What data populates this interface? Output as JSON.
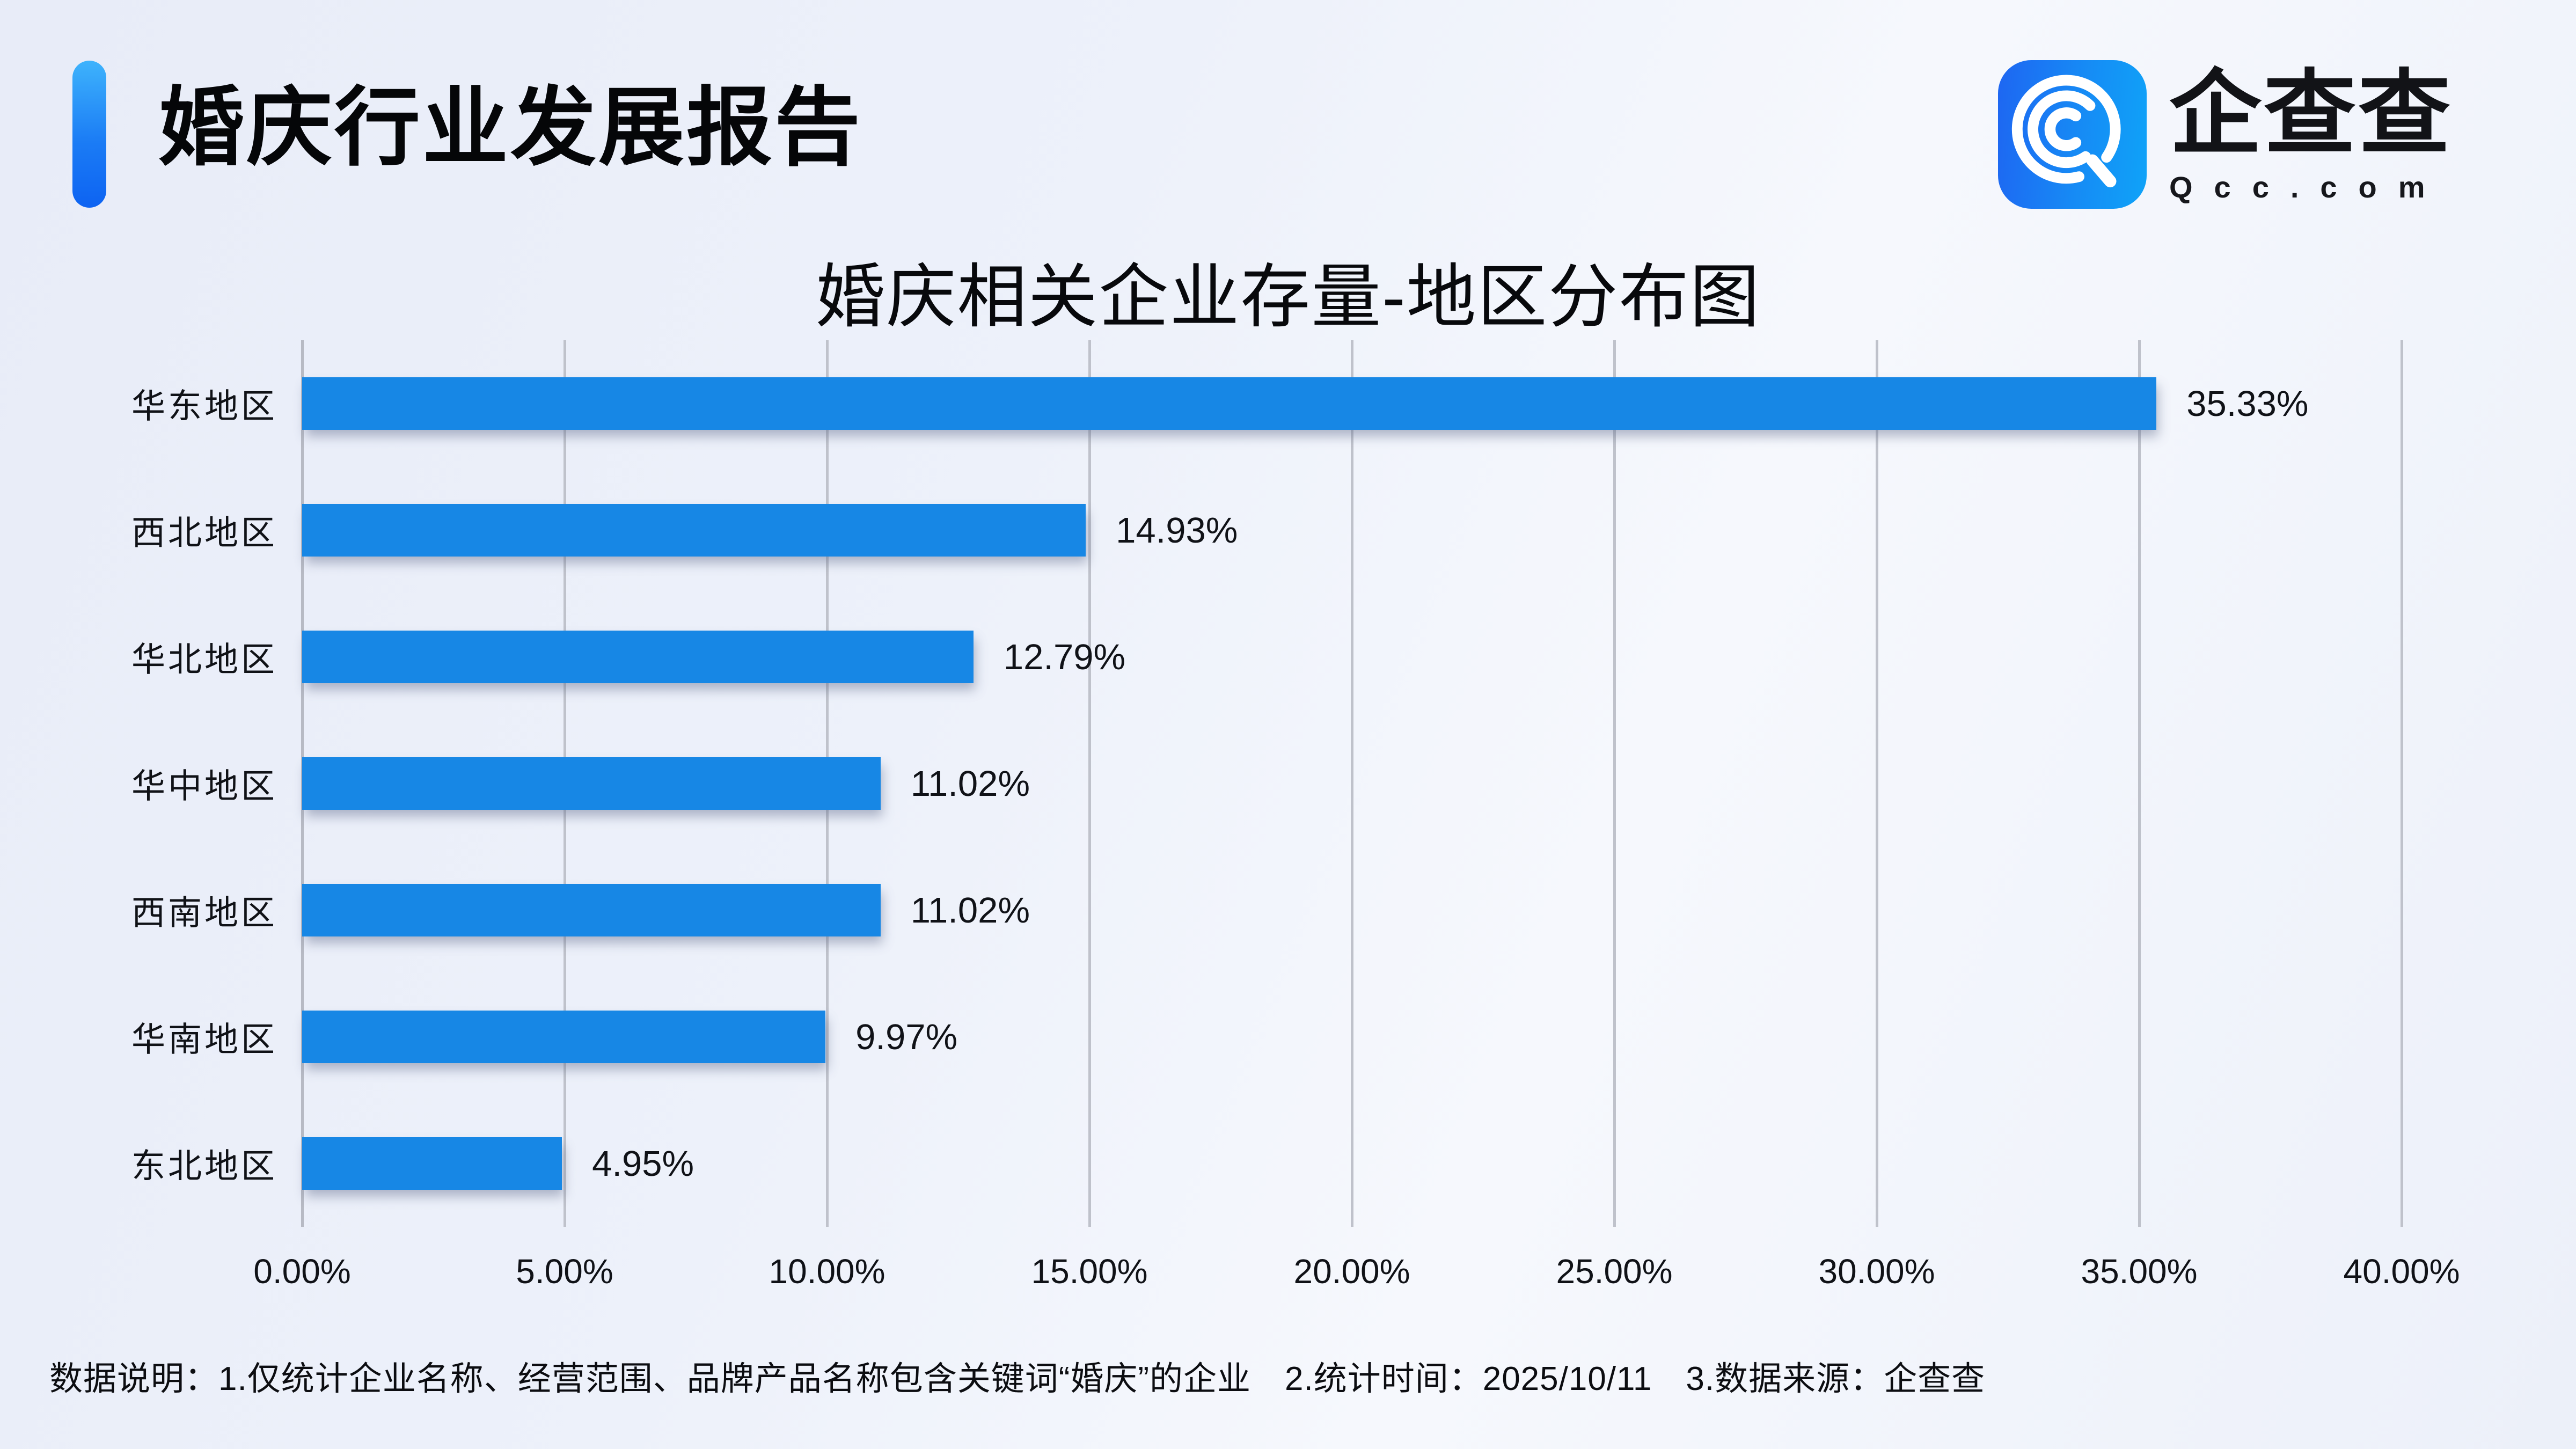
{
  "header": {
    "title": "婚庆行业发展报告"
  },
  "logo": {
    "name": "企查查",
    "domain": "Qcc.com"
  },
  "chart_data": {
    "type": "bar",
    "orientation": "horizontal",
    "title": "婚庆相关企业存量-地区分布图",
    "categories": [
      "华东地区",
      "西北地区",
      "华北地区",
      "华中地区",
      "西南地区",
      "华南地区",
      "东北地区"
    ],
    "values": [
      35.33,
      14.93,
      12.79,
      11.02,
      11.02,
      9.97,
      4.95
    ],
    "value_labels": [
      "35.33%",
      "14.93%",
      "12.79%",
      "11.02%",
      "11.02%",
      "9.97%",
      "4.95%"
    ],
    "x_ticks": [
      "0.00%",
      "5.00%",
      "10.00%",
      "15.00%",
      "20.00%",
      "25.00%",
      "30.00%",
      "35.00%",
      "40.00%"
    ],
    "xlim": [
      0,
      40
    ],
    "grid": true,
    "legend": null,
    "bar_color": "#1787E5"
  },
  "note": "数据说明：1.仅统计企业名称、经营范围、品牌产品名称包含关键词“婚庆”的企业　2.统计时间：2025/10/11　3.数据来源：企查查",
  "colors": {
    "bar": "#1787E5",
    "gridline": "#BFC2CB",
    "text": "#101217",
    "accent_top": "#3EB3FC",
    "accent_bottom": "#0D63F2",
    "brand_icon_left": "#1E66F2",
    "brand_icon_right": "#0FA3F8"
  }
}
